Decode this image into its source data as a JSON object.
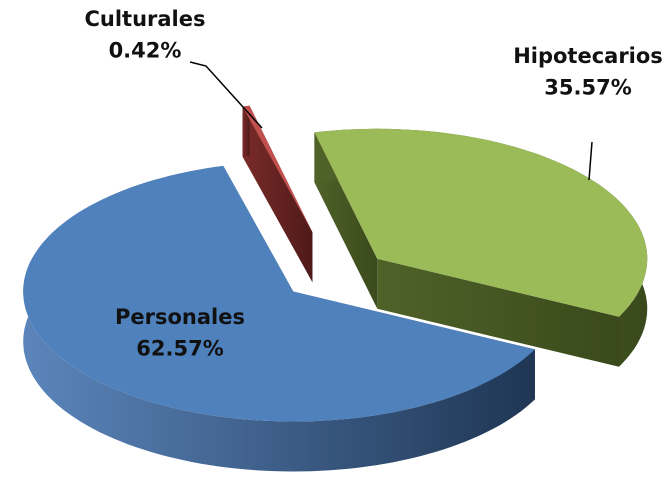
{
  "chart_data": {
    "type": "pie3d",
    "categories": [
      "Personales",
      "Hipotecarios",
      "Culturales"
    ],
    "values": [
      62.57,
      35.57,
      0.42
    ],
    "value_labels": [
      "62.57%",
      "35.57%",
      "0.42%"
    ],
    "colors": [
      "#4f81bd",
      "#9bbb59",
      "#c0504d"
    ]
  }
}
